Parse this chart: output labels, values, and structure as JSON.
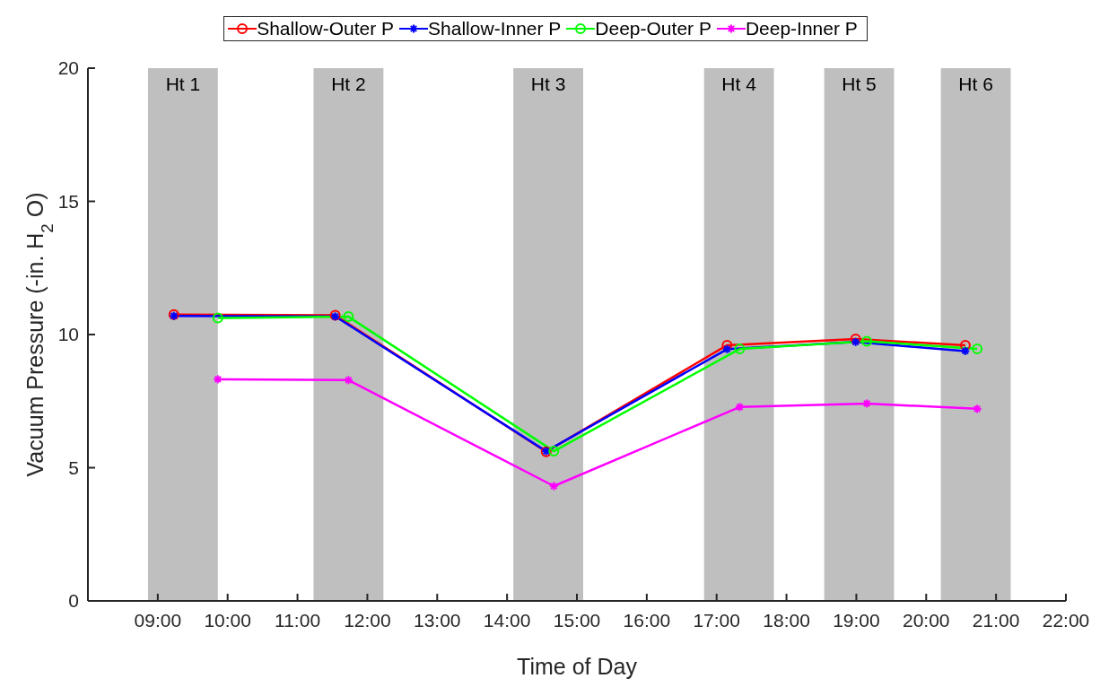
{
  "chart_data": {
    "type": "line",
    "xlabel": "Time of Day",
    "ylabel": "Vacuum Pressure (-in. H$_{2}$O)",
    "xlim": [
      8,
      22
    ],
    "xticks": [
      {
        "value": 9,
        "label": "09:00"
      },
      {
        "value": 10,
        "label": "10:00"
      },
      {
        "value": 11,
        "label": "11:00"
      },
      {
        "value": 12,
        "label": "12:00"
      },
      {
        "value": 13,
        "label": "13:00"
      },
      {
        "value": 14,
        "label": "14:00"
      },
      {
        "value": 15,
        "label": "15:00"
      },
      {
        "value": 16,
        "label": "16:00"
      },
      {
        "value": 17,
        "label": "17:00"
      },
      {
        "value": 18,
        "label": "18:00"
      },
      {
        "value": 19,
        "label": "19:00"
      },
      {
        "value": 20,
        "label": "20:00"
      },
      {
        "value": 21,
        "label": "21:00"
      },
      {
        "value": 22,
        "label": "22:00"
      }
    ],
    "ylim": [
      0,
      20
    ],
    "yticks": [
      0,
      5,
      10,
      15,
      20
    ],
    "grid": false,
    "legend": "top",
    "line_style": "solid",
    "series": [
      {
        "name": "Shallow-Outer P",
        "color": "#ff0000",
        "marker": "circle",
        "x": [
          9.23,
          11.54,
          14.56,
          17.15,
          18.99,
          20.56
        ],
        "values": [
          10.75,
          10.72,
          5.6,
          9.6,
          9.83,
          9.6
        ]
      },
      {
        "name": "Shallow-Inner P",
        "color": "#0000ff",
        "marker": "cross",
        "x": [
          9.23,
          11.54,
          14.56,
          17.15,
          18.99,
          20.56
        ],
        "values": [
          10.7,
          10.68,
          5.62,
          9.45,
          9.72,
          9.38
        ]
      },
      {
        "name": "Deep-Outer P",
        "color": "#00ff00",
        "marker": "circle",
        "x": [
          9.86,
          11.73,
          14.67,
          17.33,
          19.15,
          20.73
        ],
        "values": [
          10.62,
          10.67,
          5.62,
          9.46,
          9.75,
          9.46
        ]
      },
      {
        "name": "Deep-Inner P",
        "color": "#ff00ff",
        "marker": "cross",
        "x": [
          9.86,
          11.73,
          14.67,
          17.33,
          19.15,
          20.73
        ],
        "values": [
          8.32,
          8.29,
          4.31,
          7.28,
          7.41,
          7.21
        ]
      }
    ],
    "bands": [
      {
        "axis": "x",
        "from": 8.86,
        "to": 9.86,
        "label": "Ht 1",
        "color": "#bfbfbf"
      },
      {
        "axis": "x",
        "from": 11.23,
        "to": 12.23,
        "label": "Ht 2",
        "color": "#bfbfbf"
      },
      {
        "axis": "x",
        "from": 14.09,
        "to": 15.09,
        "label": "Ht 3",
        "color": "#bfbfbf"
      },
      {
        "axis": "x",
        "from": 16.82,
        "to": 17.82,
        "label": "Ht 4",
        "color": "#bfbfbf"
      },
      {
        "axis": "x",
        "from": 18.54,
        "to": 19.54,
        "label": "Ht 5",
        "color": "#bfbfbf"
      },
      {
        "axis": "x",
        "from": 20.21,
        "to": 21.21,
        "label": "Ht 6",
        "color": "#bfbfbf"
      }
    ]
  }
}
